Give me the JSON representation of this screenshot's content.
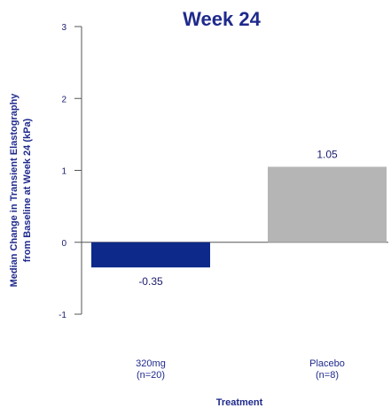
{
  "chart_data": {
    "type": "bar",
    "title": "Week 24",
    "ylabel": "Median Change in Transient Elastography from Baseline at Week 24 (kPa)",
    "ylabel_lines": [
      "Median Change in Transient Elastography",
      "from Baseline at Week 24 (kPa)"
    ],
    "xlabel": "Treatment",
    "categories": [
      "320mg (n=20)",
      "Placebo (n=8)"
    ],
    "category_lines": [
      [
        "320mg",
        "(n=20)"
      ],
      [
        "Placebo",
        "(n=8)"
      ]
    ],
    "values": [
      -0.35,
      1.05
    ],
    "data_labels": [
      "-0.35",
      "1.05"
    ],
    "bar_colors": [
      "#0d2a8a",
      "#b5b5b5"
    ],
    "ylim": [
      -1,
      3
    ],
    "yticks": [
      -1,
      0,
      1,
      2,
      3
    ],
    "ytick_labels": [
      "-1",
      "0",
      "1",
      "2",
      "3"
    ],
    "grid": false,
    "legend": "none"
  },
  "colors": {
    "title": "#1f2a8c",
    "axis_text": "#1f2a8c",
    "axis_line": "#555555"
  }
}
